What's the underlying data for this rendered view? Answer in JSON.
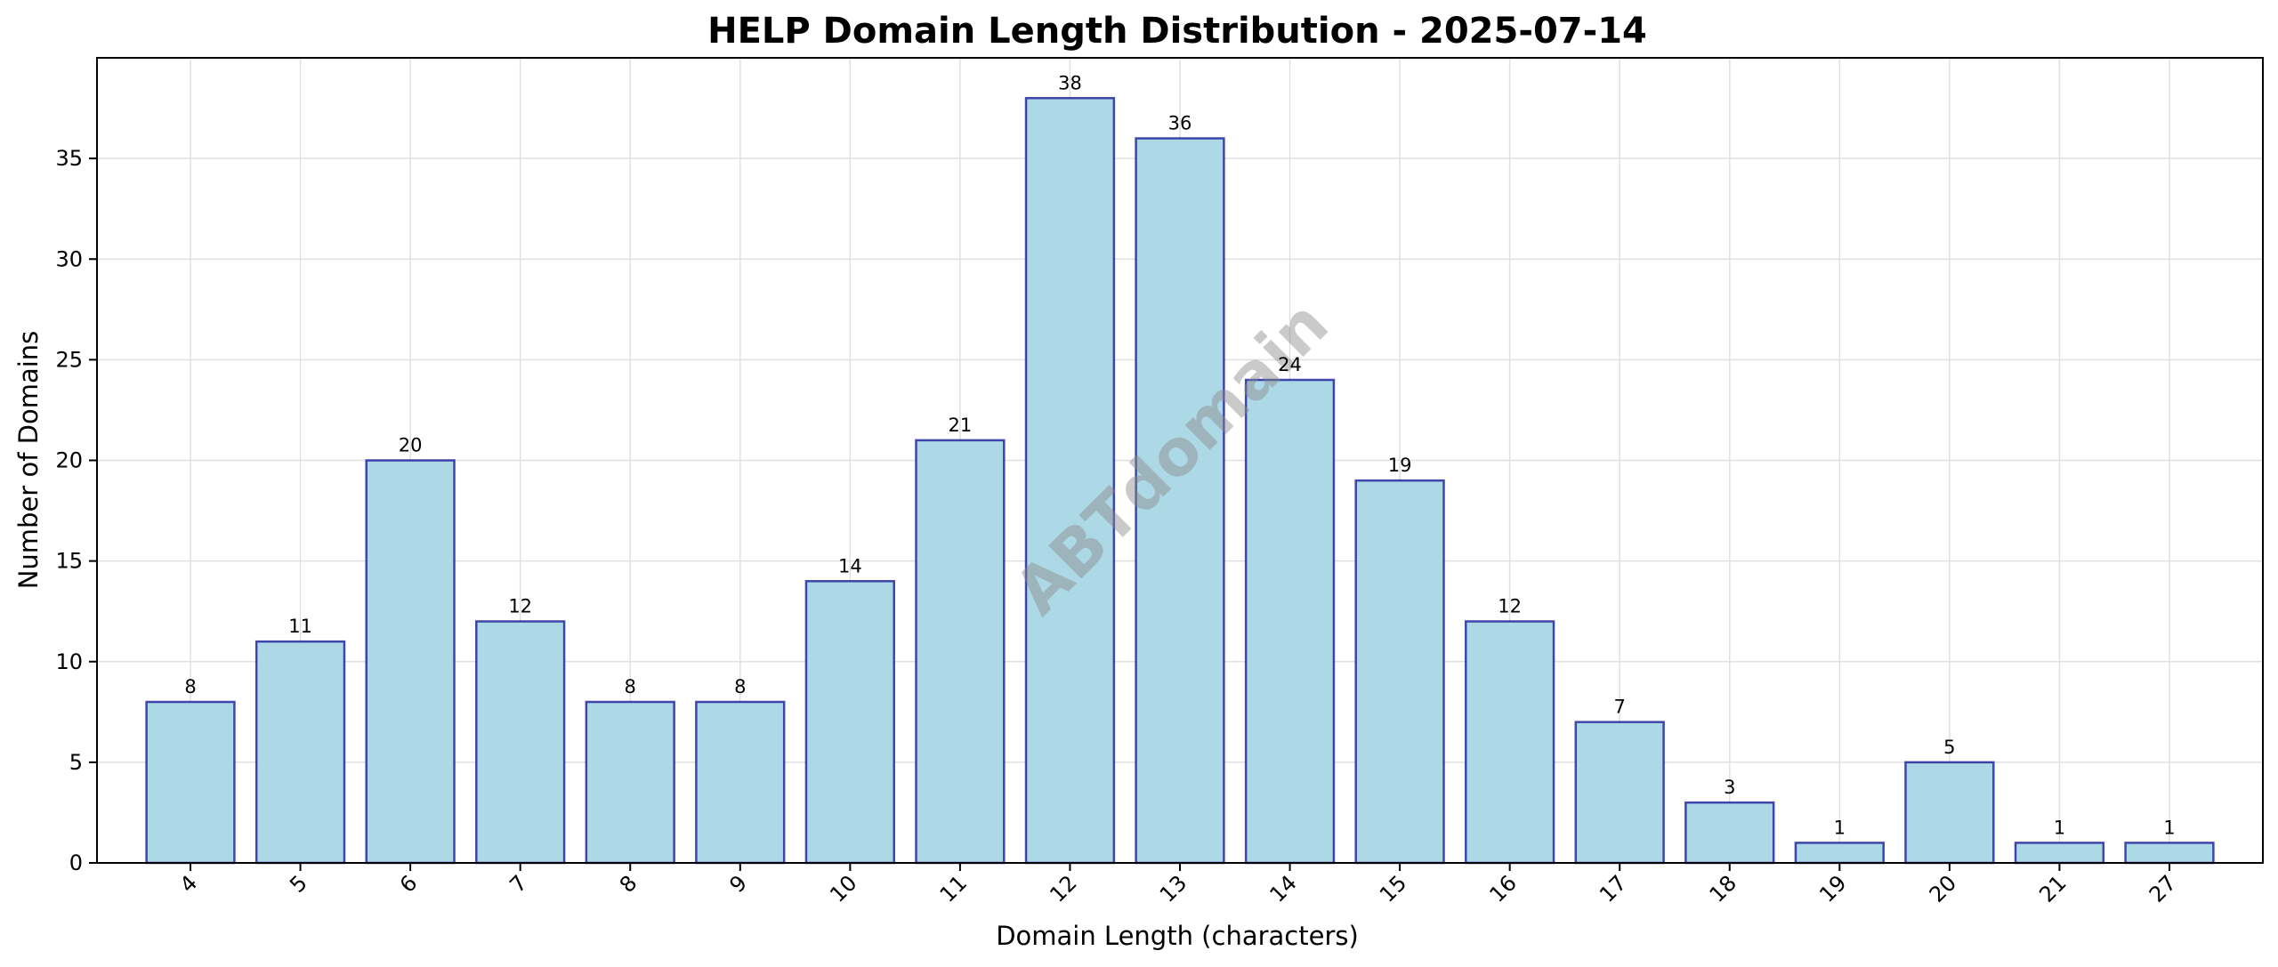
{
  "chart_data": {
    "type": "bar",
    "title": "HELP Domain Length Distribution - 2025-07-14",
    "xlabel": "Domain Length (characters)",
    "ylabel": "Number of Domains",
    "categories": [
      "4",
      "5",
      "6",
      "7",
      "8",
      "9",
      "10",
      "11",
      "12",
      "13",
      "14",
      "15",
      "16",
      "17",
      "18",
      "19",
      "20",
      "21",
      "27"
    ],
    "values": [
      8,
      11,
      20,
      12,
      8,
      8,
      14,
      21,
      38,
      36,
      24,
      19,
      12,
      7,
      3,
      1,
      5,
      1,
      1
    ],
    "ylim": [
      0,
      40
    ],
    "yticks": [
      0,
      5,
      10,
      15,
      20,
      25,
      30,
      35
    ],
    "grid": true,
    "data_labels": true,
    "xtick_rotation_deg": 45,
    "bar_color": "#ADD8E6",
    "bar_edge_color": "#00008B"
  },
  "watermark": {
    "text": "ABTdomain"
  },
  "colors": {
    "grid": "#e0e0e0",
    "axis": "#000000",
    "watermark": "#8a8a8a"
  }
}
